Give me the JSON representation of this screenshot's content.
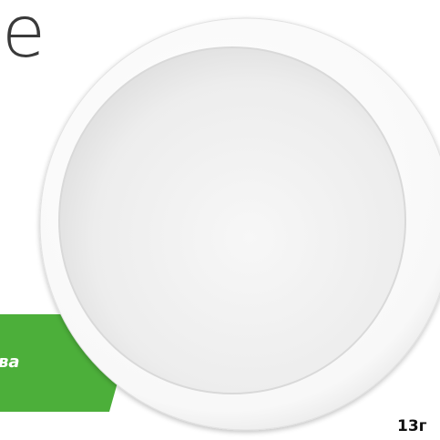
{
  "heading": "e",
  "banner": "ва",
  "label": "13г"
}
